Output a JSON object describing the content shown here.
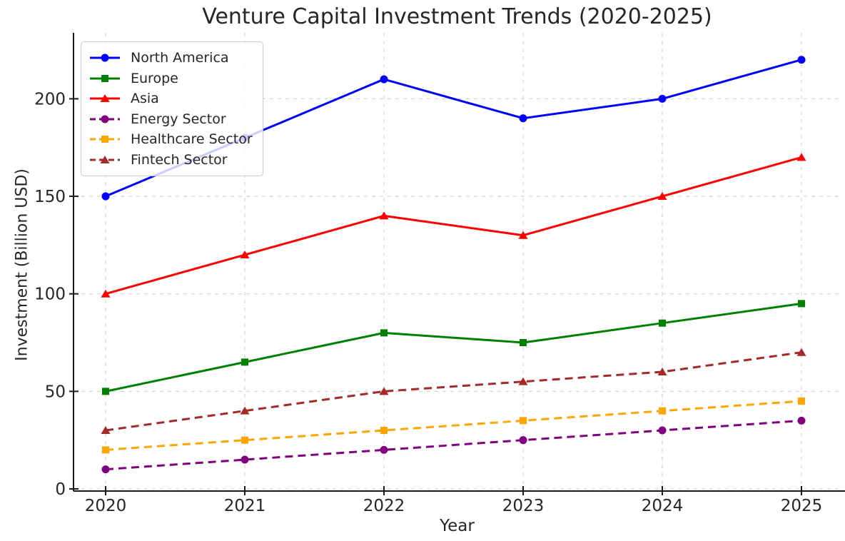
{
  "title": "Venture Capital Investment Trends (2020-2025)",
  "chart_data": {
    "type": "line",
    "title": "Venture Capital Investment Trends (2020-2025)",
    "xlabel": "Year",
    "ylabel": "Investment (Billion USD)",
    "categories": [
      "2020",
      "2021",
      "2022",
      "2023",
      "2024",
      "2025"
    ],
    "yticks": [
      "0",
      "50",
      "100",
      "150",
      "200"
    ],
    "ylim": [
      0,
      233
    ],
    "grid": true,
    "grid_color": "#cccccc",
    "axis_color": "#1a1a1a",
    "text_color": "#262626",
    "legend_position": "upper-left",
    "series": [
      {
        "name": "North America",
        "values": [
          150,
          180,
          210,
          190,
          200,
          220
        ],
        "color": "#0000ff",
        "marker": "circle",
        "line": "solid"
      },
      {
        "name": "Europe",
        "values": [
          50,
          65,
          80,
          75,
          85,
          95
        ],
        "color": "#008000",
        "marker": "square",
        "line": "solid"
      },
      {
        "name": "Asia",
        "values": [
          100,
          120,
          140,
          130,
          150,
          170
        ],
        "color": "#ff0000",
        "marker": "triangle",
        "line": "solid"
      },
      {
        "name": "Energy Sector",
        "values": [
          10,
          15,
          20,
          25,
          30,
          35
        ],
        "color": "#800080",
        "marker": "circle",
        "line": "dashed"
      },
      {
        "name": "Healthcare Sector",
        "values": [
          20,
          25,
          30,
          35,
          40,
          45
        ],
        "color": "#ffa500",
        "marker": "square",
        "line": "dashed"
      },
      {
        "name": "Fintech Sector",
        "values": [
          30,
          40,
          50,
          55,
          60,
          70
        ],
        "color": "#a52a2a",
        "marker": "triangle",
        "line": "dashed"
      }
    ]
  }
}
